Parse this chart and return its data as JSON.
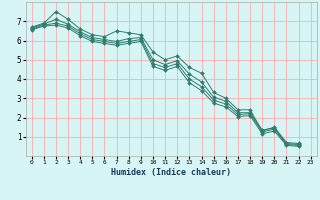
{
  "xlabel": "Humidex (Indice chaleur)",
  "background_color": "#d8f5f5",
  "grid_color": "#ffaaaa",
  "line_color": "#2e7d6e",
  "xlim": [
    -0.5,
    23.5
  ],
  "ylim": [
    0,
    8
  ],
  "yticks": [
    1,
    2,
    3,
    4,
    5,
    6,
    7
  ],
  "xticks": [
    0,
    1,
    2,
    3,
    4,
    5,
    6,
    7,
    8,
    9,
    10,
    11,
    12,
    13,
    14,
    15,
    16,
    17,
    18,
    19,
    20,
    21,
    22,
    23
  ],
  "series": [
    {
      "x": [
        0,
        1,
        2,
        3,
        4,
        5,
        6,
        7,
        8,
        9,
        10,
        11,
        12,
        13,
        14,
        15,
        16,
        17,
        18,
        19,
        20,
        21,
        22
      ],
      "y": [
        6.7,
        6.9,
        7.5,
        7.1,
        6.6,
        6.3,
        6.2,
        6.5,
        6.4,
        6.3,
        5.4,
        5.0,
        5.2,
        4.6,
        4.3,
        3.3,
        3.0,
        2.4,
        2.4,
        1.3,
        1.5,
        0.7,
        0.65
      ]
    },
    {
      "x": [
        0,
        1,
        2,
        3,
        4,
        5,
        6,
        7,
        8,
        9,
        10,
        11,
        12,
        13,
        14,
        15,
        16,
        17,
        18,
        19,
        20,
        21,
        22
      ],
      "y": [
        6.65,
        6.85,
        7.1,
        6.85,
        6.45,
        6.15,
        6.05,
        5.95,
        6.1,
        6.15,
        5.0,
        4.75,
        4.95,
        4.25,
        3.85,
        3.05,
        2.85,
        2.25,
        2.25,
        1.35,
        1.45,
        0.65,
        0.6
      ]
    },
    {
      "x": [
        0,
        1,
        2,
        3,
        4,
        5,
        6,
        7,
        8,
        9,
        10,
        11,
        12,
        13,
        14,
        15,
        16,
        17,
        18,
        19,
        20,
        21,
        22
      ],
      "y": [
        6.6,
        6.8,
        6.9,
        6.75,
        6.35,
        6.05,
        5.95,
        5.85,
        5.95,
        6.05,
        4.8,
        4.6,
        4.8,
        4.0,
        3.6,
        2.9,
        2.7,
        2.15,
        2.2,
        1.25,
        1.4,
        0.6,
        0.55
      ]
    },
    {
      "x": [
        0,
        1,
        2,
        3,
        4,
        5,
        6,
        7,
        8,
        9,
        10,
        11,
        12,
        13,
        14,
        15,
        16,
        17,
        18,
        19,
        20,
        21,
        22
      ],
      "y": [
        6.55,
        6.75,
        6.8,
        6.65,
        6.25,
        5.95,
        5.85,
        5.75,
        5.85,
        5.95,
        4.65,
        4.45,
        4.65,
        3.8,
        3.4,
        2.75,
        2.55,
        2.05,
        2.1,
        1.15,
        1.3,
        0.55,
        0.5
      ]
    }
  ]
}
